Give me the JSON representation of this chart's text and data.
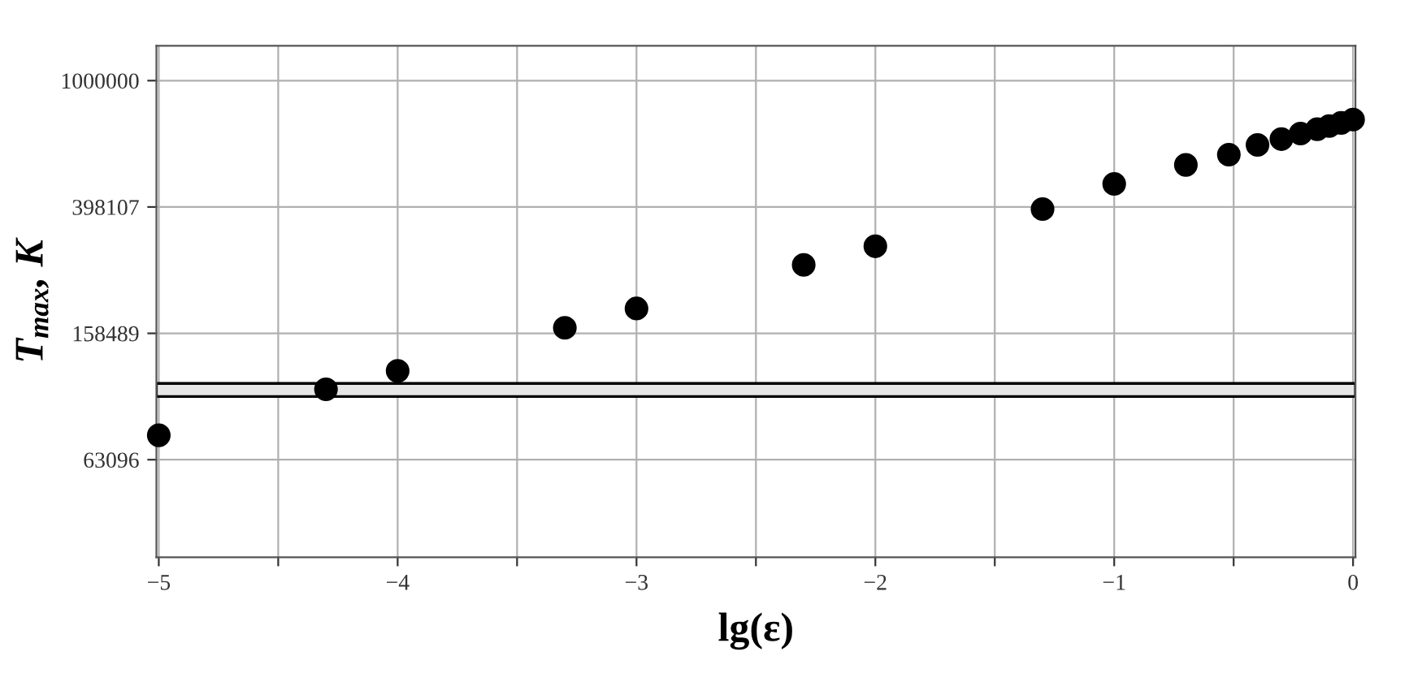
{
  "chart_data": {
    "type": "scatter",
    "xlabel": "lg(ε)",
    "ylabel": "T$_{max}$, K",
    "x": [
      -5,
      -4.3,
      -4,
      -3.3,
      -3,
      -2.3,
      -2,
      -1.3,
      -1,
      -0.7,
      -0.52,
      -0.4,
      -0.3,
      -0.22,
      -0.15,
      -0.1,
      -0.05,
      0
    ],
    "series": [
      {
        "color": "#000000",
        "values": [
          75400,
          105400,
          120500,
          165000,
          190000,
          261000,
          299000,
          392000,
          471000,
          541000,
          583000,
          626000,
          653000,
          680000,
          702000,
          718000,
          735000,
          753000
        ]
      }
    ],
    "log": "y",
    "marker": "circle",
    "xlim": [
      -5.01,
      0.01
    ],
    "ylim": [
      31000,
      1290000
    ],
    "xticks": [
      -5,
      {
        "value": -4.5,
        "label": null
      },
      -4,
      {
        "value": -3.5,
        "label": null
      },
      -3,
      {
        "value": -2.5,
        "label": null
      },
      -2,
      {
        "value": -1.5,
        "label": null
      },
      -1,
      {
        "value": -0.5,
        "label": null
      },
      0
    ],
    "yticks": [
      63096,
      158489,
      398107,
      1000000
    ],
    "bands": [
      {
        "axis": "y",
        "from": 100000,
        "to": 110000,
        "color": "#e6e6e6"
      }
    ],
    "grid": true
  }
}
